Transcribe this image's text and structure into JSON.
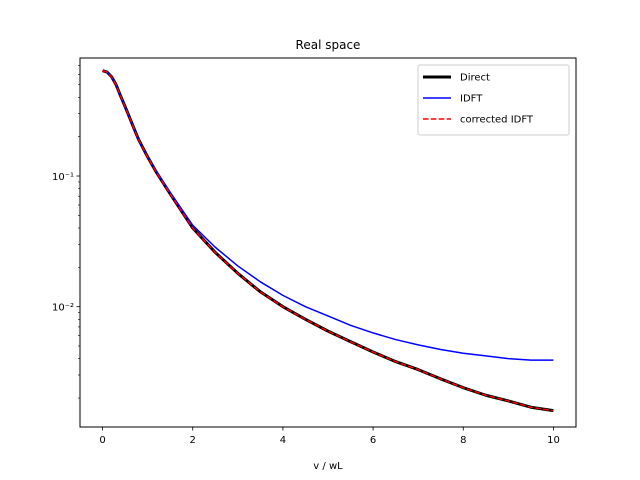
{
  "chart_data": {
    "type": "line",
    "title": "Real space",
    "xlabel": "v / wL",
    "ylabel": "",
    "xlim": [
      -0.5,
      10.5
    ],
    "ylim": [
      0.0012,
      0.8
    ],
    "yscale": "log",
    "grid": false,
    "legend_position": "top-right",
    "x_ticks": [
      0,
      2,
      4,
      6,
      8,
      10
    ],
    "x_tick_labels": [
      "0",
      "2",
      "4",
      "6",
      "8",
      "10"
    ],
    "y_ticks": [
      0.01,
      0.1
    ],
    "y_tick_labels": [
      "10⁻²",
      "10⁻¹"
    ],
    "x": [
      0,
      0.1,
      0.2,
      0.3,
      0.4,
      0.5,
      0.6,
      0.7,
      0.8,
      1.0,
      1.2,
      1.5,
      2.0,
      2.5,
      3.0,
      3.5,
      4.0,
      4.5,
      5.0,
      5.5,
      6.0,
      6.5,
      7.0,
      7.5,
      8.0,
      8.5,
      9.0,
      9.5,
      10.0
    ],
    "series": [
      {
        "name": "Direct",
        "color": "#000000",
        "style": "solid",
        "width": 3,
        "values": [
          0.64,
          0.625,
          0.575,
          0.5,
          0.41,
          0.34,
          0.28,
          0.23,
          0.19,
          0.14,
          0.106,
          0.073,
          0.04,
          0.026,
          0.018,
          0.013,
          0.01,
          0.008,
          0.0065,
          0.0054,
          0.0045,
          0.0038,
          0.0033,
          0.0028,
          0.0024,
          0.0021,
          0.0019,
          0.0017,
          0.0016
        ]
      },
      {
        "name": "IDFT",
        "color": "#0000ff",
        "style": "solid",
        "width": 1.5,
        "values": [
          0.64,
          0.625,
          0.575,
          0.5,
          0.41,
          0.34,
          0.28,
          0.23,
          0.19,
          0.14,
          0.108,
          0.075,
          0.042,
          0.0285,
          0.0205,
          0.0155,
          0.0122,
          0.01,
          0.0085,
          0.0072,
          0.0063,
          0.0056,
          0.0051,
          0.0047,
          0.0044,
          0.0042,
          0.004,
          0.0039,
          0.0039
        ]
      },
      {
        "name": "corrected IDFT",
        "color": "#ff0000",
        "style": "dashed",
        "width": 1.5,
        "values": [
          0.64,
          0.625,
          0.575,
          0.5,
          0.41,
          0.34,
          0.28,
          0.23,
          0.19,
          0.14,
          0.106,
          0.073,
          0.04,
          0.026,
          0.018,
          0.013,
          0.01,
          0.008,
          0.0065,
          0.0054,
          0.0045,
          0.0038,
          0.0033,
          0.0028,
          0.0024,
          0.0021,
          0.0019,
          0.0017,
          0.0016
        ]
      }
    ]
  }
}
